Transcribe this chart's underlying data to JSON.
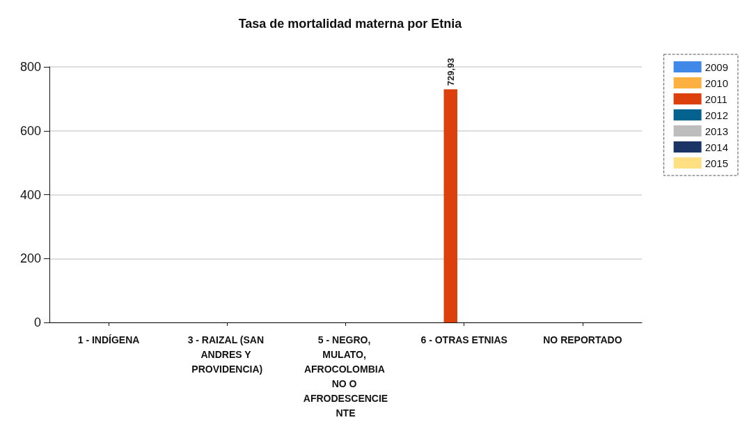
{
  "chart_data": {
    "type": "bar",
    "title": "Tasa de mortalidad materna por Etnia",
    "categories": [
      "1 - INDÍGENA",
      "3 - RAIZAL (SAN ANDRES Y PROVIDENCIA)",
      "5 - NEGRO, MULATO, AFROCOLOMBIA NO O AFRODESCENCIENTE",
      "6 - OTRAS ETNIAS",
      "NO REPORTADO"
    ],
    "series": [
      {
        "name": "2009",
        "color": "#4189e8",
        "values": [
          null,
          null,
          null,
          null,
          null
        ]
      },
      {
        "name": "2010",
        "color": "#fbb040",
        "values": [
          null,
          null,
          null,
          null,
          null
        ]
      },
      {
        "name": "2011",
        "color": "#dc400c",
        "values": [
          null,
          null,
          null,
          729.93,
          null
        ],
        "value_labels": [
          null,
          null,
          null,
          "729,93",
          null
        ]
      },
      {
        "name": "2012",
        "color": "#04628f",
        "values": [
          null,
          null,
          null,
          null,
          null
        ]
      },
      {
        "name": "2013",
        "color": "#bdbdbd",
        "values": [
          null,
          null,
          null,
          null,
          null
        ]
      },
      {
        "name": "2014",
        "color": "#1a3565",
        "values": [
          null,
          null,
          null,
          null,
          null
        ]
      },
      {
        "name": "2015",
        "color": "#fedf82",
        "values": [
          null,
          null,
          null,
          null,
          null
        ]
      }
    ],
    "ylim": [
      0,
      800
    ],
    "yticks": [
      0,
      200,
      400,
      600,
      800
    ],
    "grid": "y",
    "legend": "right"
  }
}
